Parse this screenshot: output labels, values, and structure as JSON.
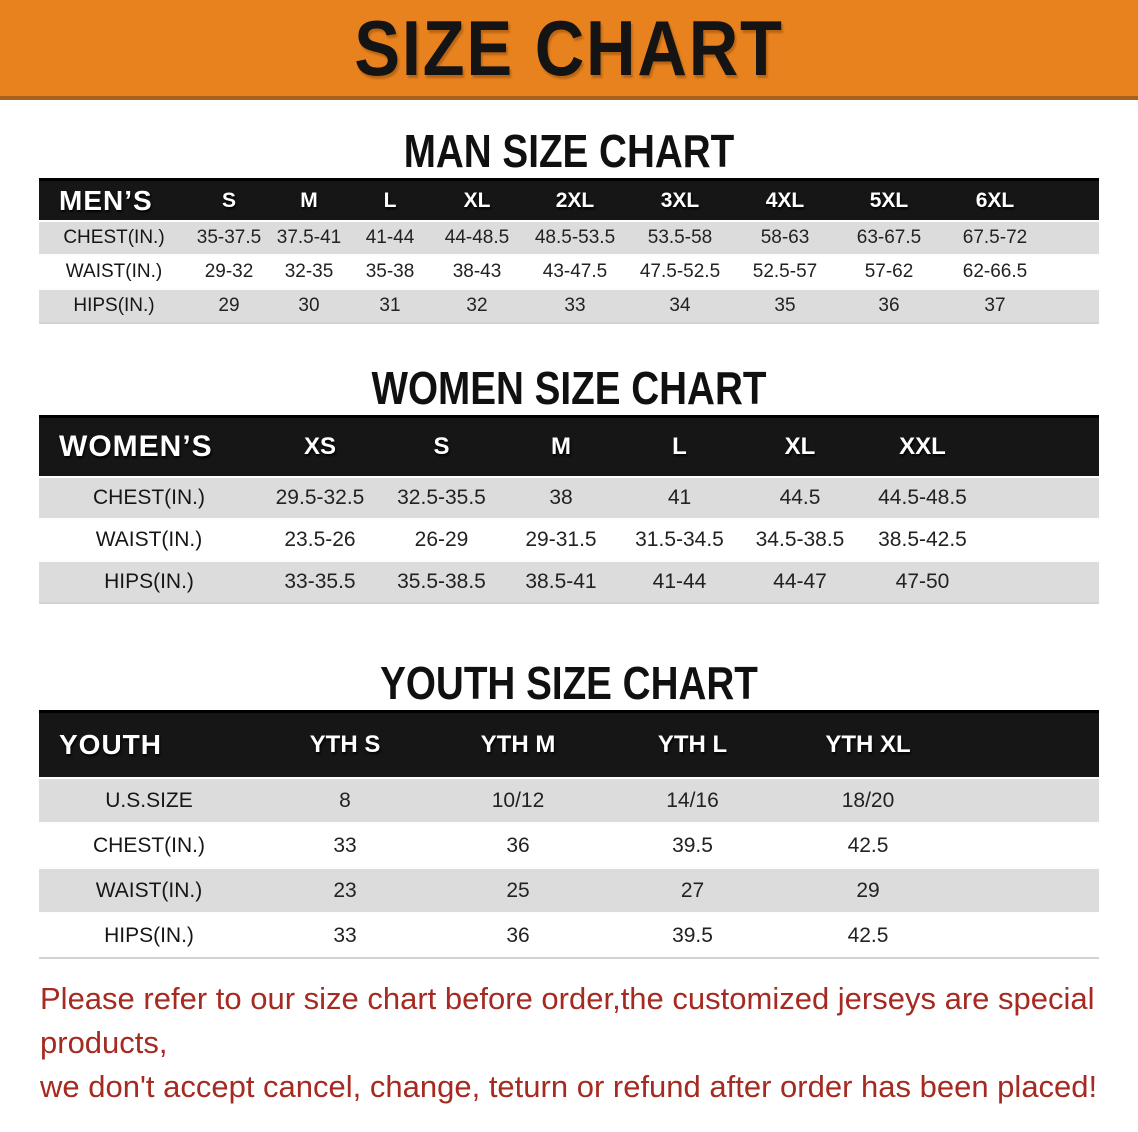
{
  "banner": {
    "title": "SIZE CHART"
  },
  "sections": {
    "men": {
      "heading": "MAN SIZE CHART",
      "label": "MEN’S",
      "columns": [
        "S",
        "M",
        "L",
        "XL",
        "2XL",
        "3XL",
        "4XL",
        "5XL",
        "6XL"
      ],
      "rows": [
        {
          "label": "CHEST(IN.)",
          "values": [
            "35-37.5",
            "37.5-41",
            "41-44",
            "44-48.5",
            "48.5-53.5",
            "53.5-58",
            "58-63",
            "63-67.5",
            "67.5-72"
          ]
        },
        {
          "label": "WAIST(IN.)",
          "values": [
            "29-32",
            "32-35",
            "35-38",
            "38-43",
            "43-47.5",
            "47.5-52.5",
            "52.5-57",
            "57-62",
            "62-66.5"
          ]
        },
        {
          "label": "HIPS(IN.)",
          "values": [
            "29",
            "30",
            "31",
            "32",
            "33",
            "34",
            "35",
            "36",
            "37"
          ]
        }
      ]
    },
    "women": {
      "heading": "WOMEN SIZE CHART",
      "label": "WOMEN’S",
      "columns": [
        "XS",
        "S",
        "M",
        "L",
        "XL",
        "XXL"
      ],
      "rows": [
        {
          "label": "CHEST(IN.)",
          "values": [
            "29.5-32.5",
            "32.5-35.5",
            "38",
            "41",
            "44.5",
            "44.5-48.5"
          ]
        },
        {
          "label": "WAIST(IN.)",
          "values": [
            "23.5-26",
            "26-29",
            "29-31.5",
            "31.5-34.5",
            "34.5-38.5",
            "38.5-42.5"
          ]
        },
        {
          "label": "HIPS(IN.)",
          "values": [
            "33-35.5",
            "35.5-38.5",
            "38.5-41",
            "41-44",
            "44-47",
            "47-50"
          ]
        }
      ]
    },
    "youth": {
      "heading": "YOUTH SIZE CHART",
      "label": "YOUTH",
      "columns": [
        "YTH S",
        "YTH M",
        "YTH L",
        "YTH XL"
      ],
      "rows": [
        {
          "label": "U.S.SIZE",
          "values": [
            "8",
            "10/12",
            "14/16",
            "18/20"
          ]
        },
        {
          "label": "CHEST(IN.)",
          "values": [
            "33",
            "36",
            "39.5",
            "42.5"
          ]
        },
        {
          "label": "WAIST(IN.)",
          "values": [
            "23",
            "25",
            "27",
            "29"
          ]
        },
        {
          "label": "HIPS(IN.)",
          "values": [
            "33",
            "36",
            "39.5",
            "42.5"
          ]
        }
      ]
    }
  },
  "disclaimer": {
    "line1": "Please refer to our size chart before order,the customized jerseys are special products,",
    "line2": "we don't accept cancel, change, teturn or refund after order has been placed!"
  },
  "colors": {
    "banner_orange": "#E8821E",
    "banner_edge": "#A8601A",
    "header_band": "#161616",
    "row_shaded": "#DCDCDC",
    "disclaimer_red": "#A52A21"
  }
}
